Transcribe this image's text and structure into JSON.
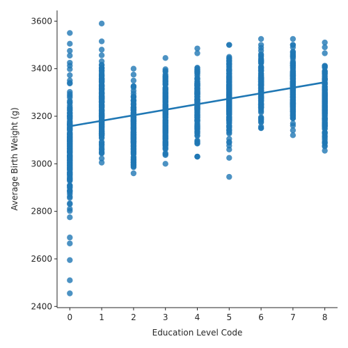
{
  "chart_data": {
    "type": "scatter",
    "xlabel": "Education Level Code",
    "ylabel": "Average Birth Weight (g)",
    "xlim": [
      -0.4,
      8.4
    ],
    "ylim": [
      2395,
      3645
    ],
    "xticks": [
      0,
      1,
      2,
      3,
      4,
      5,
      6,
      7,
      8
    ],
    "yticks": [
      2400,
      2600,
      2800,
      3000,
      3200,
      3400,
      3600
    ],
    "grid": false,
    "point_color": "#1f77b4",
    "line_color": "#1f77b4",
    "groups": [
      {
        "x": 0,
        "range": [
          2775,
          3425
        ],
        "outliers": [
          3550,
          3505,
          3475,
          3455,
          2690,
          2665,
          2595,
          2510,
          2455
        ]
      },
      {
        "x": 1,
        "range": [
          3005,
          3480
        ],
        "outliers": [
          3590,
          3515
        ]
      },
      {
        "x": 2,
        "range": [
          2960,
          3350
        ],
        "outliers": [
          3400,
          3375
        ]
      },
      {
        "x": 3,
        "range": [
          3000,
          3445
        ],
        "outliers": []
      },
      {
        "x": 4,
        "range": [
          3030,
          3465
        ],
        "outliers": [
          3485
        ]
      },
      {
        "x": 5,
        "range": [
          3060,
          3500
        ],
        "outliers": [
          3025,
          2945
        ]
      },
      {
        "x": 6,
        "range": [
          3150,
          3500
        ],
        "outliers": [
          3525
        ]
      },
      {
        "x": 7,
        "range": [
          3120,
          3500
        ],
        "outliers": [
          3525
        ]
      },
      {
        "x": 8,
        "range": [
          3055,
          3465
        ],
        "outliers": [
          3510,
          3490
        ]
      }
    ],
    "regression_line": {
      "x": [
        0,
        8
      ],
      "y": [
        3158,
        3343
      ]
    }
  }
}
